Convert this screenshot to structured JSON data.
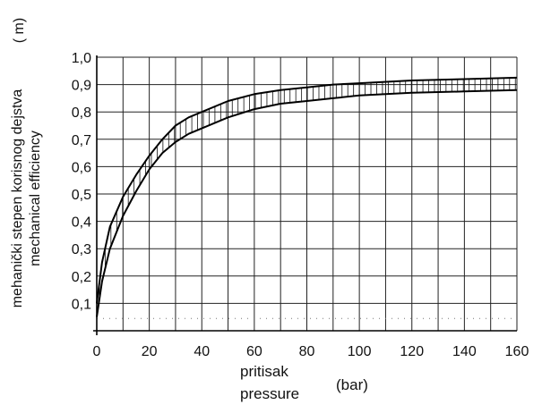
{
  "chart_data": {
    "type": "line",
    "xlabel_line1": "pritisak",
    "xlabel_line2": "pressure",
    "xunit": "(bar)",
    "ylabel_line1": "mehanički stepen korisnog dejstva",
    "ylabel_line2": "mechanical  efficiency",
    "ysymbol": "( m)",
    "xlim": [
      0,
      160
    ],
    "ylim": [
      0,
      1.0
    ],
    "grid": true,
    "x_ticks": [
      0,
      20,
      40,
      60,
      80,
      100,
      120,
      140,
      160
    ],
    "y_ticks": [
      0.1,
      0.2,
      0.3,
      0.4,
      0.5,
      0.6,
      0.7,
      0.8,
      0.9,
      1.0
    ],
    "x_tick_labels": [
      "0",
      "20",
      "40",
      "60",
      "80",
      "100",
      "120",
      "140",
      "160"
    ],
    "y_tick_labels": [
      "0,1",
      "0,2",
      "0,3",
      "0,4",
      "0,5",
      "0,6",
      "0,7",
      "0,8",
      "0,9",
      "1,0"
    ],
    "series": [
      {
        "x": [
          0,
          2,
          5,
          10,
          15,
          20,
          25,
          30,
          35,
          40,
          50,
          60,
          70,
          80,
          90,
          100,
          120,
          140,
          160
        ],
        "values": [
          0.1,
          0.25,
          0.38,
          0.49,
          0.57,
          0.64,
          0.7,
          0.75,
          0.78,
          0.8,
          0.84,
          0.865,
          0.88,
          0.89,
          0.9,
          0.905,
          0.915,
          0.92,
          0.925
        ]
      },
      {
        "x": [
          0,
          2,
          5,
          10,
          15,
          20,
          25,
          30,
          35,
          40,
          50,
          60,
          70,
          80,
          90,
          100,
          120,
          140,
          160
        ],
        "values": [
          0.05,
          0.18,
          0.3,
          0.42,
          0.51,
          0.59,
          0.65,
          0.69,
          0.72,
          0.74,
          0.78,
          0.81,
          0.83,
          0.84,
          0.85,
          0.86,
          0.87,
          0.875,
          0.88
        ]
      }
    ],
    "baseline_dotted_y": 0.045
  }
}
